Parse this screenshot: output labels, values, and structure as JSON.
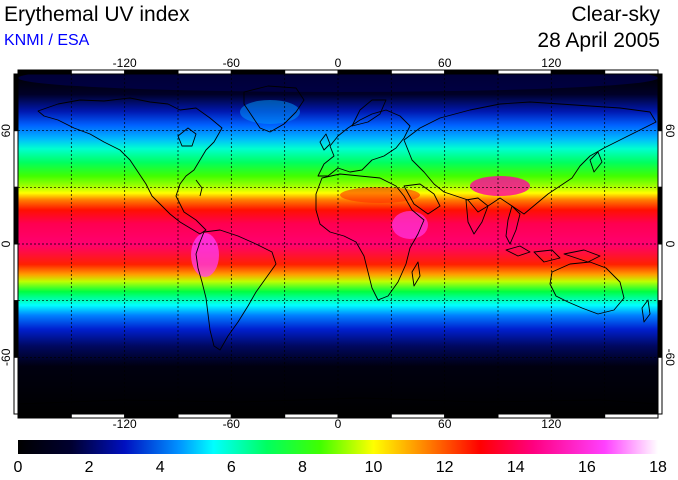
{
  "header": {
    "title": "Erythemal UV index",
    "credit": "KNMI / ESA",
    "condition": "Clear-sky",
    "date": "28 April 2005"
  },
  "map": {
    "projection": "equirectangular",
    "lon_range": [
      -180,
      180
    ],
    "lat_range": [
      -90,
      90
    ],
    "graticule_spacing": 30,
    "lon_labels": [
      "-120",
      "-60",
      "0",
      "60",
      "120"
    ],
    "lat_labels": [
      "60",
      "0",
      "-60"
    ],
    "lon_label_values": [
      -120,
      -60,
      0,
      60,
      120
    ],
    "lat_label_values": [
      60,
      0,
      -60
    ],
    "field": "erythemal UV index (clear-sky)",
    "coastline_color": "#000000",
    "graticule_color": "#000000",
    "frame_pattern": "alternating black/white 30° bars"
  },
  "colorbar": {
    "min": 0,
    "max": 18,
    "labels": [
      "0",
      "2",
      "4",
      "6",
      "8",
      "10",
      "12",
      "14",
      "16",
      "18"
    ],
    "stops": [
      {
        "value": 0,
        "color": "#000000"
      },
      {
        "value": 1.5,
        "color": "#000030"
      },
      {
        "value": 3,
        "color": "#0010c0"
      },
      {
        "value": 4.5,
        "color": "#0090ff"
      },
      {
        "value": 5.5,
        "color": "#00ffff"
      },
      {
        "value": 7,
        "color": "#00ff60"
      },
      {
        "value": 8.5,
        "color": "#40ff00"
      },
      {
        "value": 10,
        "color": "#ffff00"
      },
      {
        "value": 11.5,
        "color": "#ff8000"
      },
      {
        "value": 13,
        "color": "#ff0000"
      },
      {
        "value": 14.5,
        "color": "#ff0080"
      },
      {
        "value": 16.5,
        "color": "#ff40ff"
      },
      {
        "value": 18,
        "color": "#ffffff"
      }
    ]
  }
}
